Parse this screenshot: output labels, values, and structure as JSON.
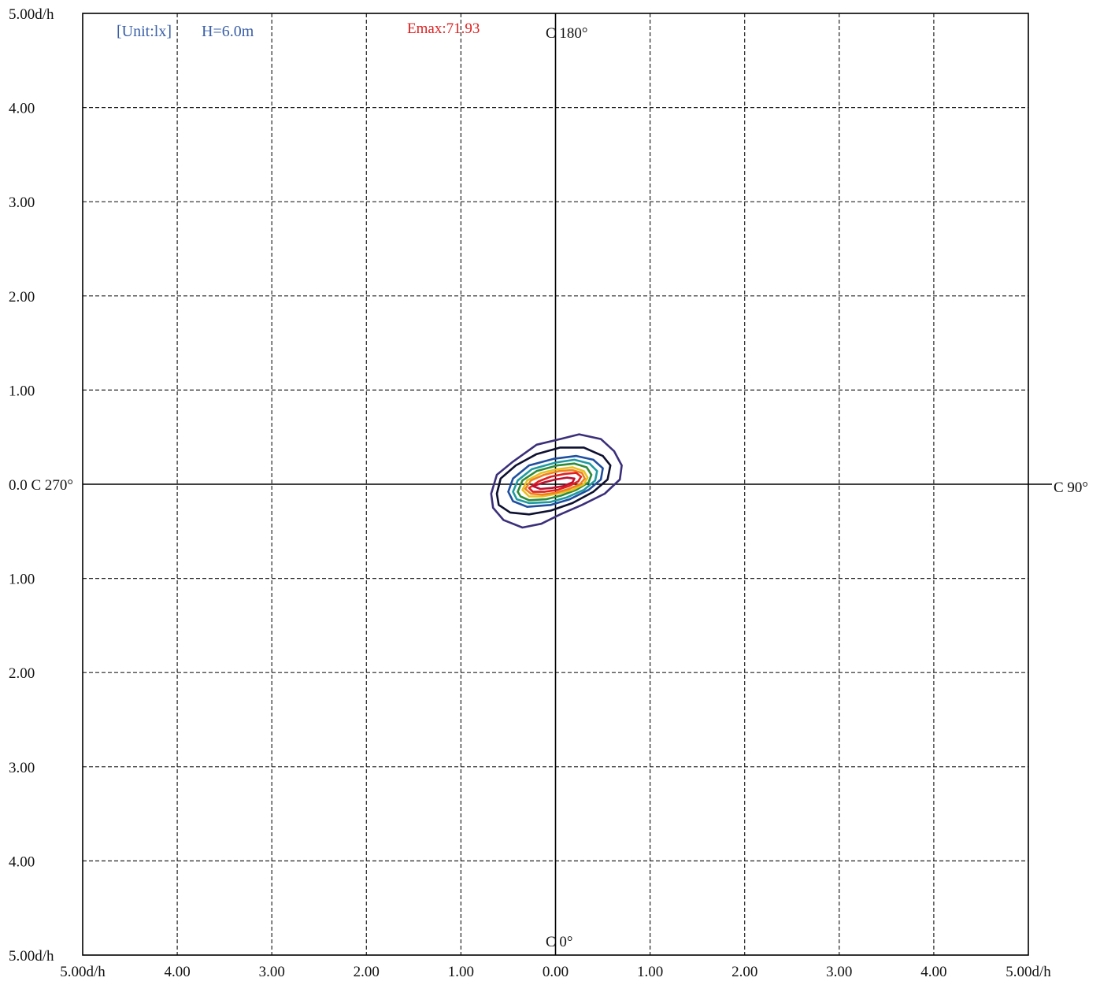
{
  "chart_data": {
    "type": "contour",
    "title": "",
    "unit_note": "[Unit:lx]",
    "height_note": "H=6.0m",
    "emax_note": "Emax:71.93",
    "axis_range": {
      "x": [
        -5,
        5
      ],
      "y": [
        -5,
        5
      ]
    },
    "grid": true,
    "grid_step": 1,
    "x_ticks": [
      "5.00d/h",
      "4.00",
      "3.00",
      "2.00",
      "1.00",
      "0.00",
      "1.00",
      "2.00",
      "3.00",
      "4.00",
      "5.00d/h"
    ],
    "y_ticks": [
      {
        "value": 5,
        "label": "5.00d/h"
      },
      {
        "value": 4,
        "label": "4.00"
      },
      {
        "value": 3,
        "label": "3.00"
      },
      {
        "value": 2,
        "label": "2.00"
      },
      {
        "value": 1,
        "label": "1.00"
      },
      {
        "value": 0,
        "label": "0.0 C 270°"
      },
      {
        "value": -1,
        "label": "1.00"
      },
      {
        "value": -2,
        "label": "2.00"
      },
      {
        "value": -3,
        "label": "3.00"
      },
      {
        "value": -4,
        "label": "4.00"
      },
      {
        "value": -5,
        "label": "5.00d/h"
      }
    ],
    "direction_labels": {
      "top": "C 180°",
      "right": "C 90°",
      "bottom": "C 0°"
    },
    "contours": [
      {
        "color": "#3b2f7a",
        "points": [
          [
            -0.68,
            -0.1
          ],
          [
            -0.62,
            0.1
          ],
          [
            -0.45,
            0.24
          ],
          [
            -0.2,
            0.42
          ],
          [
            0.05,
            0.48
          ],
          [
            0.25,
            0.53
          ],
          [
            0.48,
            0.48
          ],
          [
            0.62,
            0.35
          ],
          [
            0.7,
            0.2
          ],
          [
            0.68,
            0.05
          ],
          [
            0.52,
            -0.1
          ],
          [
            0.28,
            -0.22
          ],
          [
            0.05,
            -0.32
          ],
          [
            -0.15,
            -0.42
          ],
          [
            -0.35,
            -0.46
          ],
          [
            -0.55,
            -0.38
          ],
          [
            -0.66,
            -0.25
          ]
        ]
      },
      {
        "color": "#0d1030",
        "points": [
          [
            -0.62,
            -0.1
          ],
          [
            -0.58,
            0.06
          ],
          [
            -0.42,
            0.2
          ],
          [
            -0.2,
            0.32
          ],
          [
            0.05,
            0.39
          ],
          [
            0.3,
            0.39
          ],
          [
            0.5,
            0.3
          ],
          [
            0.58,
            0.2
          ],
          [
            0.55,
            0.05
          ],
          [
            0.4,
            -0.08
          ],
          [
            0.18,
            -0.2
          ],
          [
            -0.05,
            -0.28
          ],
          [
            -0.28,
            -0.32
          ],
          [
            -0.48,
            -0.3
          ],
          [
            -0.6,
            -0.22
          ]
        ]
      },
      {
        "color": "#1f4fa0",
        "points": [
          [
            -0.5,
            -0.08
          ],
          [
            -0.45,
            0.06
          ],
          [
            -0.28,
            0.2
          ],
          [
            -0.02,
            0.27
          ],
          [
            0.22,
            0.3
          ],
          [
            0.4,
            0.26
          ],
          [
            0.5,
            0.17
          ],
          [
            0.48,
            0.05
          ],
          [
            0.35,
            -0.06
          ],
          [
            0.15,
            -0.16
          ],
          [
            -0.05,
            -0.22
          ],
          [
            -0.3,
            -0.24
          ],
          [
            -0.45,
            -0.18
          ]
        ]
      },
      {
        "color": "#1f9aa0",
        "points": [
          [
            -0.45,
            -0.08
          ],
          [
            -0.4,
            0.04
          ],
          [
            -0.25,
            0.16
          ],
          [
            0.0,
            0.23
          ],
          [
            0.2,
            0.26
          ],
          [
            0.36,
            0.22
          ],
          [
            0.44,
            0.14
          ],
          [
            0.42,
            0.04
          ],
          [
            0.3,
            -0.06
          ],
          [
            0.12,
            -0.14
          ],
          [
            -0.06,
            -0.19
          ],
          [
            -0.28,
            -0.2
          ],
          [
            -0.41,
            -0.16
          ]
        ]
      },
      {
        "color": "#2e8b3a",
        "points": [
          [
            -0.4,
            -0.08
          ],
          [
            -0.35,
            0.04
          ],
          [
            -0.2,
            0.14
          ],
          [
            0.02,
            0.2
          ],
          [
            0.2,
            0.22
          ],
          [
            0.33,
            0.18
          ],
          [
            0.38,
            0.1
          ],
          [
            0.35,
            0.02
          ],
          [
            0.22,
            -0.06
          ],
          [
            0.06,
            -0.12
          ],
          [
            -0.1,
            -0.16
          ],
          [
            -0.28,
            -0.17
          ],
          [
            -0.37,
            -0.13
          ]
        ]
      },
      {
        "color": "#e8c020",
        "points": [
          [
            -0.35,
            -0.06
          ],
          [
            -0.3,
            0.04
          ],
          [
            -0.15,
            0.12
          ],
          [
            0.02,
            0.16
          ],
          [
            0.18,
            0.18
          ],
          [
            0.3,
            0.14
          ],
          [
            0.34,
            0.07
          ],
          [
            0.3,
            0.0
          ],
          [
            0.18,
            -0.06
          ],
          [
            0.02,
            -0.1
          ],
          [
            -0.14,
            -0.13
          ],
          [
            -0.28,
            -0.13
          ]
        ]
      },
      {
        "color": "#f08020",
        "points": [
          [
            -0.32,
            -0.05
          ],
          [
            -0.26,
            0.04
          ],
          [
            -0.12,
            0.1
          ],
          [
            0.04,
            0.14
          ],
          [
            0.18,
            0.15
          ],
          [
            0.28,
            0.12
          ],
          [
            0.31,
            0.06
          ],
          [
            0.26,
            0.0
          ],
          [
            0.14,
            -0.05
          ],
          [
            0.0,
            -0.09
          ],
          [
            -0.14,
            -0.11
          ],
          [
            -0.26,
            -0.1
          ]
        ]
      },
      {
        "color": "#e02020",
        "points": [
          [
            -0.28,
            -0.04
          ],
          [
            -0.18,
            0.03
          ],
          [
            -0.05,
            0.08
          ],
          [
            0.1,
            0.11
          ],
          [
            0.22,
            0.12
          ],
          [
            0.27,
            0.08
          ],
          [
            0.24,
            0.03
          ],
          [
            0.14,
            -0.02
          ],
          [
            0.02,
            -0.06
          ],
          [
            -0.12,
            -0.08
          ],
          [
            -0.24,
            -0.08
          ]
        ]
      },
      {
        "color": "#c01030",
        "points": [
          [
            -0.24,
            -0.02
          ],
          [
            -0.12,
            0.02
          ],
          [
            0.0,
            0.05
          ],
          [
            0.12,
            0.07
          ],
          [
            0.2,
            0.06
          ],
          [
            0.18,
            0.02
          ],
          [
            0.08,
            -0.02
          ],
          [
            -0.04,
            -0.04
          ],
          [
            -0.16,
            -0.05
          ]
        ]
      }
    ],
    "colors": {
      "unit_note": "#3a5fa8",
      "emax_note": "#e02020"
    }
  }
}
